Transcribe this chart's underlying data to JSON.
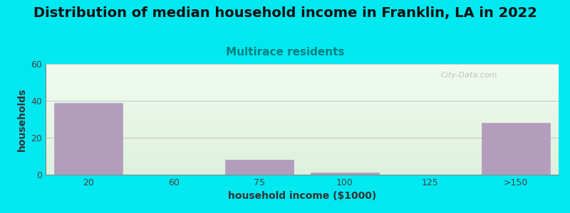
{
  "title": "Distribution of median household income in Franklin, LA in 2022",
  "subtitle": "Multirace residents",
  "xlabel": "household income ($1000)",
  "ylabel": "households",
  "categories": [
    "20",
    "60",
    "75",
    "100",
    "125",
    ">150"
  ],
  "values": [
    39,
    0,
    8,
    1,
    0,
    28
  ],
  "bar_color": "#b39dbd",
  "bar_edgecolor": "#b39dbd",
  "ylim": [
    0,
    60
  ],
  "yticks": [
    0,
    20,
    40,
    60
  ],
  "background_outer": "#00e8f0",
  "background_grad_top": "#f0faf0",
  "background_grad_bottom": "#ddf0dd",
  "title_fontsize": 14,
  "subtitle_fontsize": 11,
  "subtitle_color": "#008080",
  "axis_label_fontsize": 10,
  "tick_fontsize": 9,
  "watermark": "City-Data.com",
  "bar_positions": [
    0,
    1,
    2,
    3,
    4,
    5
  ],
  "bar_width": 0.8
}
